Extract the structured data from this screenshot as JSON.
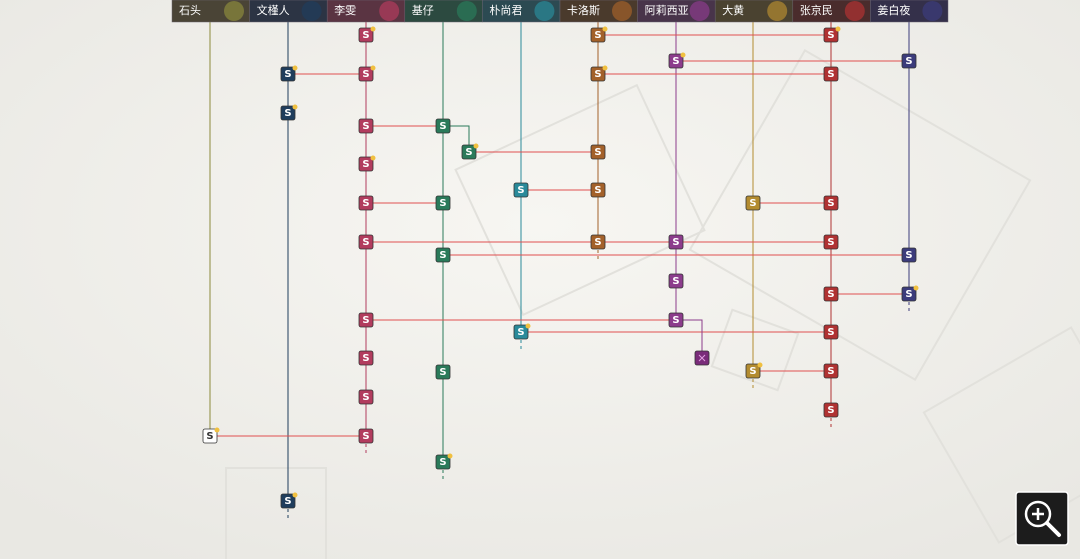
{
  "header": {
    "characters": [
      "石头",
      "文槿人",
      "李雯",
      "基仔",
      "朴尚君",
      "卡洛斯",
      "阿莉西亚",
      "大黄",
      "张京民",
      "姜白夜"
    ]
  },
  "node_label": "S"
}
